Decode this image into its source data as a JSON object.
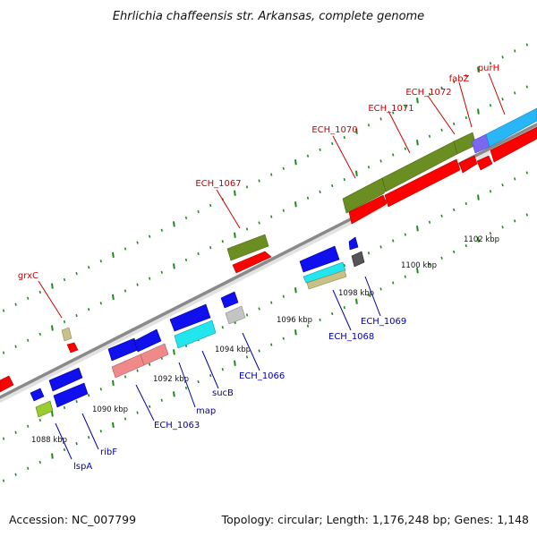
{
  "title": "Ehrlichia chaffeensis str. Arkansas, complete genome",
  "accession": "Accession: NC_007799",
  "stats": "Topology: circular; Length: 1,176,248 bp; Genes: 1,148",
  "colors": {
    "backbone": "#8a8a8a",
    "tick": "#1e8a1e",
    "label_top": "#cc0000",
    "label_bottom": "#0000aa",
    "red": "#ff0000",
    "olive": "#6b8e23",
    "blue": "#1010ee",
    "cyan": "#22e5ee",
    "salmon": "#f08a8a",
    "tan": "#c8c084",
    "gray": "#c4c4c4",
    "darkgray": "#555555",
    "skyblue": "#29b6f6",
    "slate": "#7b68ee",
    "lime": "#9acd32",
    "khaki": "#c9c28a"
  },
  "ruler": {
    "labels": [
      "1088 kbp",
      "1090 kbp",
      "1092 kbp",
      "1094 kbp",
      "1096 kbp",
      "1098 kbp",
      "1100 kbp",
      "1102 kbp"
    ]
  },
  "labels": {
    "top": [
      "grxC",
      "ECH_1067",
      "ECH_1070",
      "ECH_1071",
      "ECH_1072",
      "fabZ",
      "purH"
    ],
    "bottom": [
      "lspA",
      "ribF",
      "ECH_1063",
      "map",
      "sucB",
      "ECH_1066",
      "ECH_1068",
      "ECH_1069"
    ]
  },
  "genes": [
    {
      "name": "ECH_1070",
      "color": "olive"
    },
    {
      "name": "ECH_1071",
      "color": "olive"
    },
    {
      "name": "ECH_1072",
      "color": "olive"
    },
    {
      "name": "fabZ",
      "color": "slate"
    },
    {
      "name": "purH",
      "color": "skyblue"
    },
    {
      "name": "ECH_1067",
      "color": "olive"
    },
    {
      "name": "grxC",
      "color": "khaki"
    },
    {
      "name": "lspA",
      "color": "lime"
    },
    {
      "name": "ribF",
      "color": "blue"
    },
    {
      "name": "ECH_1063",
      "color": "salmon"
    },
    {
      "name": "map",
      "color": "blue"
    },
    {
      "name": "sucB",
      "color": "cyan"
    },
    {
      "name": "ECH_1066",
      "color": "gray"
    },
    {
      "name": "ECH_1068",
      "color": "cyan"
    },
    {
      "name": "ECH_1069",
      "color": "darkgray"
    }
  ]
}
